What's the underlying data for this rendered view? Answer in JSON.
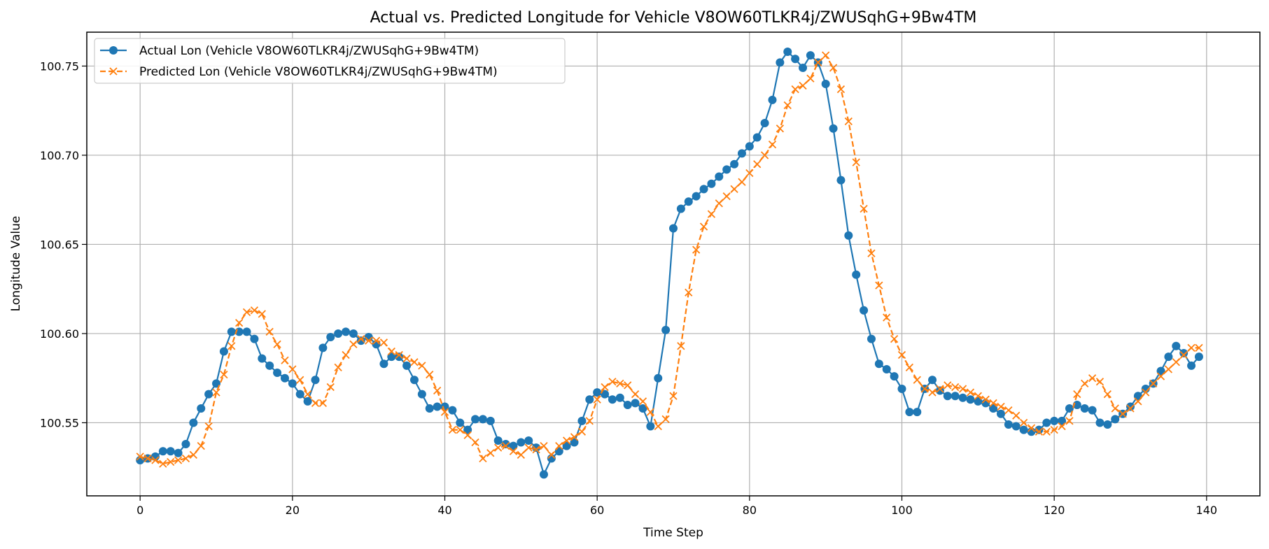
{
  "chart_data": {
    "type": "line",
    "title": "Actual vs. Predicted Longitude for Vehicle V8OW60TLKR4j/ZWUSqhG+9Bw4TM",
    "xlabel": "Time Step",
    "ylabel": "Longitude Value",
    "xlim": [
      -7,
      147
    ],
    "ylim": [
      100.509,
      100.769
    ],
    "xticks": [
      0,
      20,
      40,
      60,
      80,
      100,
      120,
      140
    ],
    "yticks": [
      100.55,
      100.6,
      100.65,
      100.7,
      100.75
    ],
    "ytick_labels": [
      "100.55",
      "100.60",
      "100.65",
      "100.70",
      "100.75"
    ],
    "grid": true,
    "legend_position": "top-left",
    "series": [
      {
        "name": "Actual Lon (Vehicle V8OW60TLKR4j/ZWUSqhG+9Bw4TM)",
        "color": "#1f77b4",
        "line_style": "solid",
        "marker": "circle",
        "values": [
          100.529,
          100.53,
          100.531,
          100.534,
          100.534,
          100.533,
          100.538,
          100.55,
          100.558,
          100.566,
          100.572,
          100.59,
          100.601,
          100.601,
          100.601,
          100.597,
          100.586,
          100.582,
          100.578,
          100.575,
          100.572,
          100.566,
          100.562,
          100.574,
          100.592,
          100.598,
          100.6,
          100.601,
          100.6,
          100.596,
          100.598,
          100.594,
          100.583,
          100.587,
          100.587,
          100.582,
          100.574,
          100.566,
          100.558,
          100.559,
          100.559,
          100.557,
          100.55,
          100.546,
          100.552,
          100.552,
          100.551,
          100.54,
          100.538,
          100.537,
          100.539,
          100.54,
          100.536,
          100.521,
          100.53,
          100.534,
          100.537,
          100.539,
          100.551,
          100.563,
          100.567,
          100.566,
          100.563,
          100.564,
          100.56,
          100.561,
          100.558,
          100.548,
          100.575,
          100.602,
          100.659,
          100.67,
          100.674,
          100.677,
          100.681,
          100.684,
          100.688,
          100.692,
          100.695,
          100.701,
          100.705,
          100.71,
          100.718,
          100.731,
          100.752,
          100.758,
          100.754,
          100.749,
          100.756,
          100.752,
          100.74,
          100.715,
          100.686,
          100.655,
          100.633,
          100.613,
          100.597,
          100.583,
          100.58,
          100.576,
          100.569,
          100.556,
          100.556,
          100.569,
          100.574,
          100.568,
          100.565,
          100.565,
          100.564,
          100.563,
          100.562,
          100.561,
          100.558,
          100.555,
          100.549,
          100.548,
          100.546,
          100.545,
          100.546,
          100.55,
          100.551,
          100.551,
          100.558,
          100.56,
          100.558,
          100.557,
          100.55,
          100.549,
          100.552,
          100.555,
          100.559,
          100.565,
          100.569,
          100.572,
          100.579,
          100.587,
          100.593,
          100.589,
          100.582,
          100.587
        ]
      },
      {
        "name": "Predicted Lon (Vehicle V8OW60TLKR4j/ZWUSqhG+9Bw4TM)",
        "color": "#ff7f0e",
        "line_style": "dashed",
        "marker": "x",
        "values": [
          100.531,
          100.53,
          100.529,
          100.527,
          100.528,
          100.529,
          100.53,
          100.532,
          100.537,
          100.548,
          100.567,
          100.577,
          100.593,
          100.606,
          100.612,
          100.613,
          100.611,
          100.601,
          100.594,
          100.585,
          100.58,
          100.574,
          100.566,
          100.561,
          100.561,
          100.57,
          100.581,
          100.588,
          100.594,
          100.597,
          100.596,
          100.596,
          100.595,
          100.59,
          100.588,
          100.586,
          100.584,
          100.582,
          100.577,
          100.568,
          100.556,
          100.546,
          100.546,
          100.543,
          100.539,
          100.53,
          100.533,
          100.536,
          100.537,
          100.534,
          100.532,
          100.536,
          100.535,
          100.537,
          100.532,
          100.537,
          100.54,
          100.542,
          100.545,
          100.551,
          100.563,
          100.57,
          100.573,
          100.572,
          100.571,
          100.566,
          100.562,
          100.556,
          100.548,
          100.552,
          100.565,
          100.593,
          100.623,
          100.647,
          100.66,
          100.667,
          100.673,
          100.677,
          100.681,
          100.685,
          100.69,
          100.695,
          100.7,
          100.706,
          100.715,
          100.728,
          100.737,
          100.739,
          100.743,
          100.752,
          100.756,
          100.749,
          100.737,
          100.719,
          100.696,
          100.67,
          100.645,
          100.627,
          100.609,
          100.597,
          100.588,
          100.581,
          100.574,
          100.569,
          100.567,
          100.569,
          100.571,
          100.57,
          100.569,
          100.567,
          100.565,
          100.563,
          100.561,
          100.559,
          100.557,
          100.554,
          100.55,
          100.547,
          100.545,
          100.545,
          100.546,
          100.548,
          100.551,
          100.566,
          100.572,
          100.575,
          100.573,
          100.566,
          100.558,
          100.555,
          100.558,
          100.562,
          100.567,
          100.572,
          100.576,
          100.58,
          100.584,
          100.588,
          100.592,
          100.592
        ]
      }
    ]
  }
}
